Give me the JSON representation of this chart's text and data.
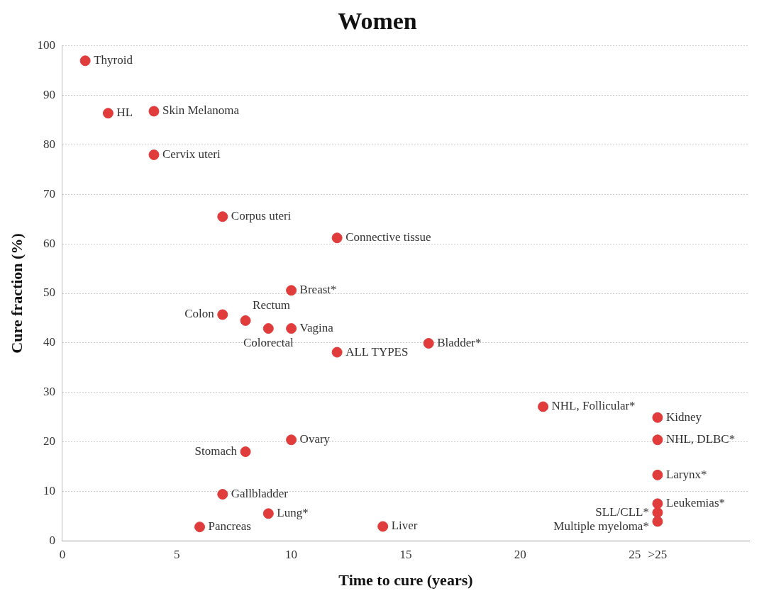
{
  "chart_data": {
    "type": "scatter",
    "title": "Women",
    "xlabel": "Time to cure (years)",
    "ylabel": "Cure fraction (%)",
    "x": [
      1,
      2,
      4,
      4,
      7,
      12,
      10,
      7,
      8,
      9,
      10,
      12,
      16,
      21,
      26,
      26,
      26,
      26,
      26,
      26,
      10,
      8,
      7,
      9,
      6,
      14
    ],
    "values": [
      97,
      86.4,
      86.8,
      78,
      65.5,
      61.2,
      50.6,
      45.7,
      44.5,
      42.9,
      42.9,
      38.1,
      39.9,
      27.1,
      24.9,
      20.4,
      13.3,
      7.5,
      5.7,
      3.9,
      20.4,
      18,
      9.4,
      5.5,
      2.8,
      2.9
    ],
    "color": "#e03c3c",
    "marker": "circle",
    "xlim": [
      0,
      30
    ],
    "xticks": [
      0,
      5,
      10,
      15,
      20,
      25,
      {
        "value": 26,
        "label": ">25"
      }
    ],
    "ylim": [
      0,
      100
    ],
    "yticks": [
      0,
      10,
      20,
      30,
      40,
      50,
      60,
      70,
      80,
      90,
      100
    ],
    "grid": "y",
    "legend": false,
    "annotations": [
      {
        "text": "Thyroid",
        "x": 1,
        "y": 97
      },
      {
        "text": "HL",
        "x": 2,
        "y": 86.4
      },
      {
        "text": "Skin Melanoma",
        "x": 4,
        "y": 86.8
      },
      {
        "text": "Cervix uteri",
        "x": 4,
        "y": 78
      },
      {
        "text": "Corpus uteri",
        "x": 7,
        "y": 65.5
      },
      {
        "text": "Connective tissue",
        "x": 12,
        "y": 61.2
      },
      {
        "text": "Breast*",
        "x": 10,
        "y": 50.6
      },
      {
        "text": "Colon",
        "x": 7,
        "y": 45.7
      },
      {
        "text": "Rectum",
        "x": 8,
        "y": 44.5
      },
      {
        "text": "Colorectal",
        "x": 9,
        "y": 42.9
      },
      {
        "text": "Vagina",
        "x": 10,
        "y": 42.9
      },
      {
        "text": "ALL TYPES",
        "x": 12,
        "y": 38.1
      },
      {
        "text": "Bladder*",
        "x": 16,
        "y": 39.9
      },
      {
        "text": "NHL, Follicular*",
        "x": 21,
        "y": 27.1
      },
      {
        "text": "Kidney",
        "x": 26,
        "y": 24.9
      },
      {
        "text": "NHL, DLBC*",
        "x": 26,
        "y": 20.4
      },
      {
        "text": "Larynx*",
        "x": 26,
        "y": 13.3
      },
      {
        "text": "Leukemias*",
        "x": 26,
        "y": 7.5
      },
      {
        "text": "SLL/CLL*",
        "x": 26,
        "y": 5.7
      },
      {
        "text": "Multiple myeloma*",
        "x": 26,
        "y": 3.9
      },
      {
        "text": "Ovary",
        "x": 10,
        "y": 20.4
      },
      {
        "text": "Stomach",
        "x": 8,
        "y": 18
      },
      {
        "text": "Gallbladder",
        "x": 7,
        "y": 9.4
      },
      {
        "text": "Lung*",
        "x": 9,
        "y": 5.5
      },
      {
        "text": "Pancreas",
        "x": 6,
        "y": 2.8
      },
      {
        "text": "Liver",
        "x": 14,
        "y": 2.9
      }
    ]
  }
}
